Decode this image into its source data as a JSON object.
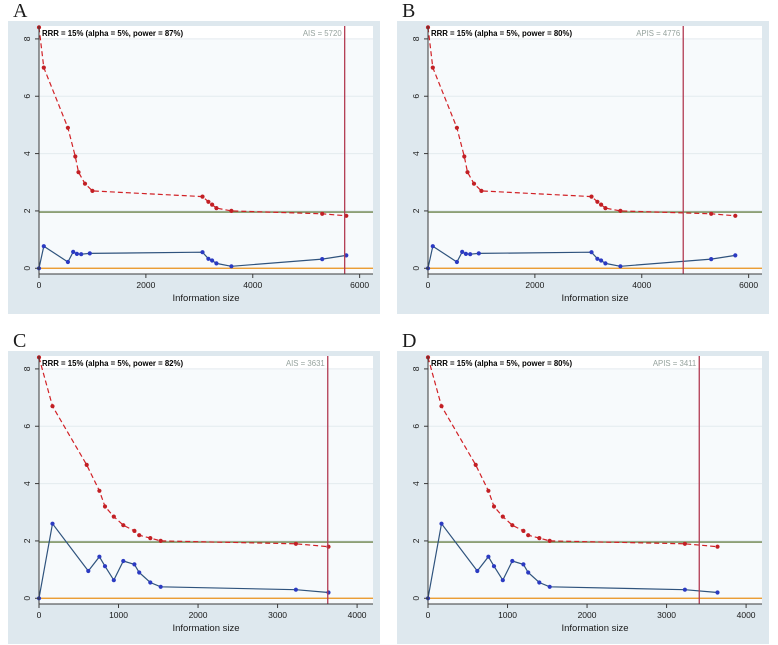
{
  "colors": {
    "page_bg": "#ffffff",
    "graph_bg": "#dee8ee",
    "plot_bg": "#f7fafc",
    "band_bg": "#ffffff",
    "gridline": "#e3ebef",
    "axis": "#3a3a3a",
    "tick_text": "#1a1a1a",
    "title_text": "#000000",
    "boundary_label_text": "#96a39e",
    "red_line": "#d12126",
    "red_marker": "#c21f24",
    "navy_line": "#2f537d",
    "blue_marker": "#2b3ac2",
    "green_line": "#6a8148",
    "orange_line": "#e8901a",
    "vline": "#b23b52"
  },
  "chart_data": [
    {
      "panel": "A",
      "type": "line",
      "title": "RRR = 15% (alpha = 5%, power = 87%)",
      "boundary_label": "AIS = 5720",
      "boundary_x": 5720,
      "xlabel": "Information size",
      "xticks": [
        0,
        2000,
        4000,
        6000
      ],
      "yticks": [
        0,
        2,
        4,
        6,
        8
      ],
      "xlim": [
        0,
        6250
      ],
      "ylim": [
        -0.2,
        8.45
      ],
      "hlines": [
        {
          "name": "conventional-significance",
          "y": 1.96,
          "color_key": "green_line"
        },
        {
          "name": "null-line",
          "y": 0,
          "color_key": "orange_line"
        }
      ],
      "series": [
        {
          "name": "monitoring-boundary",
          "style": "dashed",
          "line_key": "red_line",
          "marker_key": "red_marker",
          "x": [
            0,
            90,
            540,
            680,
            740,
            860,
            1000,
            3060,
            3170,
            3240,
            3320,
            3600,
            5300,
            5750
          ],
          "y": [
            8.4,
            7.0,
            4.9,
            3.9,
            3.35,
            2.95,
            2.7,
            2.5,
            2.32,
            2.22,
            2.1,
            2.0,
            1.9,
            1.83
          ]
        },
        {
          "name": "cumulative-z-curve",
          "style": "solid",
          "line_key": "navy_line",
          "marker_key": "blue_marker",
          "x": [
            0,
            90,
            540,
            640,
            710,
            790,
            950,
            3060,
            3170,
            3240,
            3320,
            3600,
            5300,
            5750
          ],
          "y": [
            0,
            0.77,
            0.22,
            0.57,
            0.5,
            0.49,
            0.52,
            0.56,
            0.33,
            0.27,
            0.17,
            0.07,
            0.32,
            0.45
          ]
        }
      ]
    },
    {
      "panel": "B",
      "type": "line",
      "title": "RRR = 15% (alpha = 5%, power = 80%)",
      "boundary_label": "APIS = 4776",
      "boundary_x": 4776,
      "xlabel": "Information size",
      "xticks": [
        0,
        2000,
        4000,
        6000
      ],
      "yticks": [
        0,
        2,
        4,
        6,
        8
      ],
      "xlim": [
        0,
        6250
      ],
      "ylim": [
        -0.2,
        8.45
      ],
      "hlines": [
        {
          "name": "conventional-significance",
          "y": 1.96,
          "color_key": "green_line"
        },
        {
          "name": "null-line",
          "y": 0,
          "color_key": "orange_line"
        }
      ],
      "series": [
        {
          "name": "monitoring-boundary",
          "style": "dashed",
          "line_key": "red_line",
          "marker_key": "red_marker",
          "x": [
            0,
            90,
            540,
            680,
            740,
            860,
            1000,
            3060,
            3170,
            3240,
            3320,
            3600,
            5300,
            5750
          ],
          "y": [
            8.4,
            7.0,
            4.9,
            3.9,
            3.35,
            2.95,
            2.7,
            2.5,
            2.32,
            2.22,
            2.1,
            2.0,
            1.9,
            1.83
          ]
        },
        {
          "name": "cumulative-z-curve",
          "style": "solid",
          "line_key": "navy_line",
          "marker_key": "blue_marker",
          "x": [
            0,
            90,
            540,
            640,
            710,
            790,
            950,
            3060,
            3170,
            3240,
            3320,
            3600,
            5300,
            5750
          ],
          "y": [
            0,
            0.77,
            0.22,
            0.57,
            0.5,
            0.49,
            0.52,
            0.56,
            0.33,
            0.27,
            0.17,
            0.07,
            0.32,
            0.45
          ]
        }
      ]
    },
    {
      "panel": "C",
      "type": "line",
      "title": "RRR = 15% (alpha = 5%, power = 82%)",
      "boundary_label": "AIS = 3631",
      "boundary_x": 3631,
      "xlabel": "Information size",
      "xticks": [
        0,
        1000,
        2000,
        3000,
        4000
      ],
      "yticks": [
        0,
        2,
        4,
        6,
        8
      ],
      "xlim": [
        0,
        4200
      ],
      "ylim": [
        -0.2,
        8.45
      ],
      "hlines": [
        {
          "name": "conventional-significance",
          "y": 1.96,
          "color_key": "green_line"
        },
        {
          "name": "null-line",
          "y": 0,
          "color_key": "orange_line"
        }
      ],
      "series": [
        {
          "name": "monitoring-boundary",
          "style": "dashed",
          "line_key": "red_line",
          "marker_key": "red_marker",
          "x": [
            0,
            170,
            600,
            760,
            830,
            940,
            1060,
            1200,
            1260,
            1400,
            1530,
            3230,
            3640
          ],
          "y": [
            8.4,
            6.7,
            4.65,
            3.75,
            3.2,
            2.85,
            2.55,
            2.35,
            2.2,
            2.1,
            2.0,
            1.9,
            1.8
          ]
        },
        {
          "name": "cumulative-z-curve",
          "style": "solid",
          "line_key": "navy_line",
          "marker_key": "blue_marker",
          "x": [
            0,
            170,
            620,
            760,
            830,
            940,
            1060,
            1200,
            1260,
            1400,
            1530,
            3230,
            3640
          ],
          "y": [
            0,
            2.6,
            0.95,
            1.45,
            1.12,
            0.63,
            1.3,
            1.18,
            0.9,
            0.55,
            0.4,
            0.3,
            0.2
          ]
        }
      ]
    },
    {
      "panel": "D",
      "type": "line",
      "title": "RRR = 15% (alpha = 5%, power = 80%)",
      "boundary_label": "APIS = 3411",
      "boundary_x": 3411,
      "xlabel": "Information size",
      "xticks": [
        0,
        1000,
        2000,
        3000,
        4000
      ],
      "yticks": [
        0,
        2,
        4,
        6,
        8
      ],
      "xlim": [
        0,
        4200
      ],
      "ylim": [
        -0.2,
        8.45
      ],
      "hlines": [
        {
          "name": "conventional-significance",
          "y": 1.96,
          "color_key": "green_line"
        },
        {
          "name": "null-line",
          "y": 0,
          "color_key": "orange_line"
        }
      ],
      "series": [
        {
          "name": "monitoring-boundary",
          "style": "dashed",
          "line_key": "red_line",
          "marker_key": "red_marker",
          "x": [
            0,
            170,
            600,
            760,
            830,
            940,
            1060,
            1200,
            1260,
            1400,
            1530,
            3230,
            3640
          ],
          "y": [
            8.4,
            6.7,
            4.65,
            3.75,
            3.2,
            2.85,
            2.55,
            2.35,
            2.2,
            2.1,
            2.0,
            1.9,
            1.8
          ]
        },
        {
          "name": "cumulative-z-curve",
          "style": "solid",
          "line_key": "navy_line",
          "marker_key": "blue_marker",
          "x": [
            0,
            170,
            620,
            760,
            830,
            940,
            1060,
            1200,
            1260,
            1400,
            1530,
            3230,
            3640
          ],
          "y": [
            0,
            2.6,
            0.95,
            1.45,
            1.12,
            0.63,
            1.3,
            1.18,
            0.9,
            0.55,
            0.4,
            0.3,
            0.2
          ]
        }
      ]
    }
  ]
}
